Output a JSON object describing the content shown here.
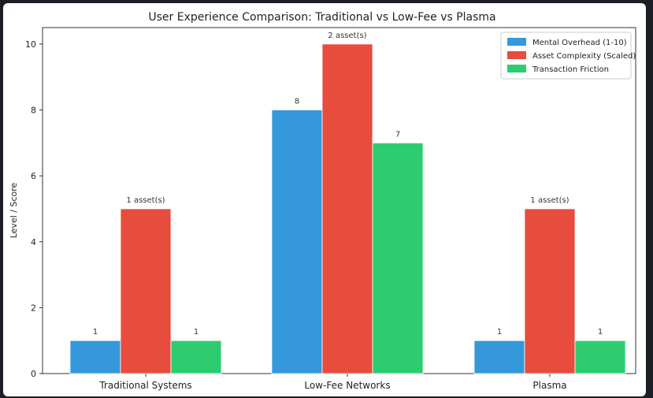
{
  "chart_data": {
    "type": "bar",
    "title": "User Experience Comparison: Traditional vs Low-Fee vs Plasma",
    "xlabel": "",
    "ylabel": "Level / Score",
    "categories": [
      "Traditional Systems",
      "Low-Fee Networks",
      "Plasma"
    ],
    "ylim": [
      0,
      10.5
    ],
    "yticks": [
      0,
      2,
      4,
      6,
      8,
      10
    ],
    "legend_position": "top-right",
    "series": [
      {
        "name": "Mental Overhead (1-10)",
        "color": "#3498db",
        "values": [
          1,
          8,
          1
        ],
        "labels": [
          "1",
          "8",
          "1"
        ]
      },
      {
        "name": "Asset Complexity (Scaled)",
        "color": "#e74c3c",
        "values": [
          5,
          10,
          5
        ],
        "labels": [
          "1 asset(s)",
          "2 asset(s)",
          "1 asset(s)"
        ]
      },
      {
        "name": "Transaction Friction",
        "color": "#2ecc71",
        "values": [
          1,
          7,
          1
        ],
        "labels": [
          "1",
          "7",
          "1"
        ]
      }
    ]
  }
}
